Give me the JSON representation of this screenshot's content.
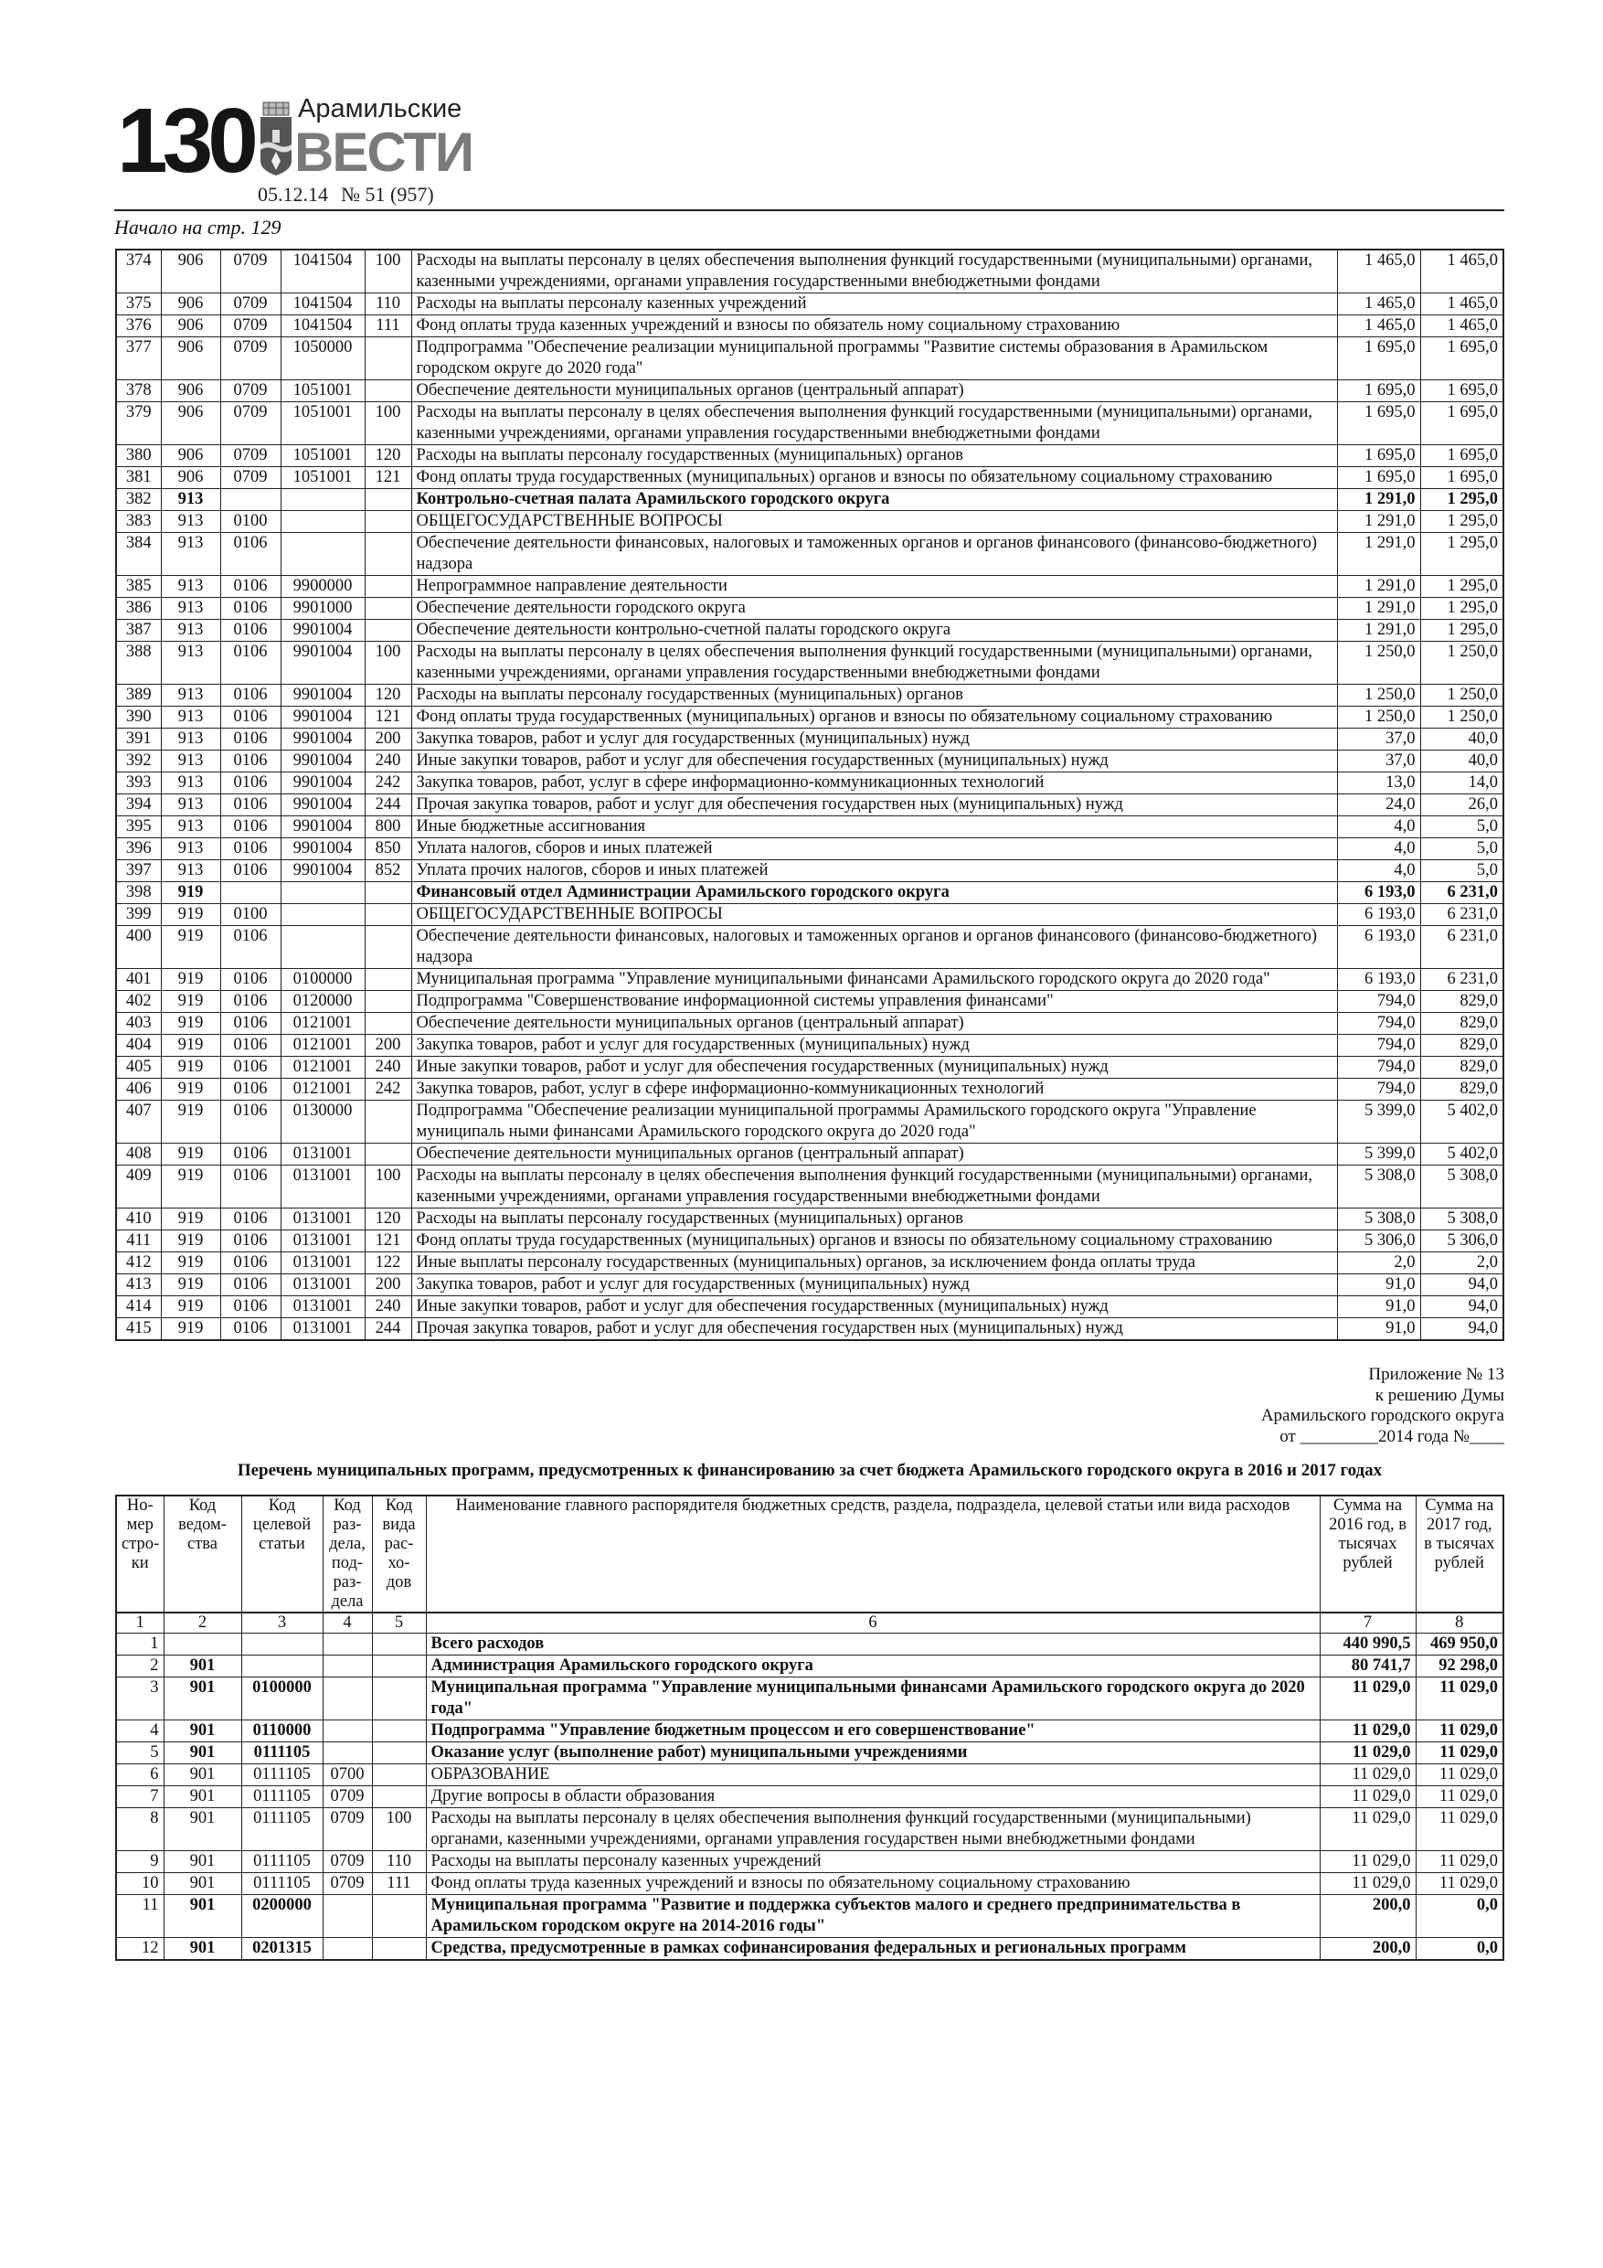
{
  "masthead": {
    "page_number": "130",
    "paper_name_line1": "Арамильские",
    "paper_name_line2": "ВЕСТИ",
    "date": "05.12.14",
    "issue": "№ 51 (957)",
    "continued_from": "Начало на стр. 129"
  },
  "top_table": {
    "rows": [
      {
        "n": "374",
        "ved": "906",
        "razd": "0709",
        "cs": "1041504",
        "vr": "100",
        "name": "Расходы на выплаты персоналу в целях обеспечения выполнения функций государственными (муниципальными) органами, казенными учреждениями, органами управления государственными внебюджетными фондами",
        "s1": "1 465,0",
        "s2": "1 465,0"
      },
      {
        "n": "375",
        "ved": "906",
        "razd": "0709",
        "cs": "1041504",
        "vr": "110",
        "name": "Расходы на выплаты персоналу казенных учреждений",
        "s1": "1 465,0",
        "s2": "1 465,0"
      },
      {
        "n": "376",
        "ved": "906",
        "razd": "0709",
        "cs": "1041504",
        "vr": "111",
        "name": "Фонд оплаты труда казенных учреждений и взносы по обязатель ному социальному страхованию",
        "s1": "1 465,0",
        "s2": "1 465,0"
      },
      {
        "n": "377",
        "ved": "906",
        "razd": "0709",
        "cs": "1050000",
        "vr": "",
        "name": "Подпрограмма \"Обеспечение реализации муниципальной программы \"Развитие системы образования в Арамильском городском округе до 2020 года\"",
        "s1": "1 695,0",
        "s2": "1 695,0"
      },
      {
        "n": "378",
        "ved": "906",
        "razd": "0709",
        "cs": "1051001",
        "vr": "",
        "name": "Обеспечение деятельности муниципальных органов (центральный аппарат)",
        "s1": "1 695,0",
        "s2": "1 695,0"
      },
      {
        "n": "379",
        "ved": "906",
        "razd": "0709",
        "cs": "1051001",
        "vr": "100",
        "name": "Расходы на выплаты персоналу в целях обеспечения выполнения функций государственными (муниципальными) органами, казенными учреждениями, органами управления государственными внебюджетными фондами",
        "s1": "1 695,0",
        "s2": "1 695,0"
      },
      {
        "n": "380",
        "ved": "906",
        "razd": "0709",
        "cs": "1051001",
        "vr": "120",
        "name": "Расходы на выплаты персоналу государственных (муниципальных) органов",
        "s1": "1 695,0",
        "s2": "1 695,0"
      },
      {
        "n": "381",
        "ved": "906",
        "razd": "0709",
        "cs": "1051001",
        "vr": "121",
        "name": "Фонд оплаты труда государственных (муниципальных) органов и  взносы по обязательному социальному страхованию",
        "s1": "1 695,0",
        "s2": "1 695,0"
      },
      {
        "n": "382",
        "ved": "913",
        "razd": "",
        "cs": "",
        "vr": "",
        "name": "Контрольно-счетная палата Арамильского городского округа",
        "s1": "1 291,0",
        "s2": "1 295,0",
        "bold": true
      },
      {
        "n": "383",
        "ved": "913",
        "razd": "0100",
        "cs": "",
        "vr": "",
        "name": "ОБЩЕГОСУДАРСТВЕННЫЕ ВОПРОСЫ",
        "s1": "1 291,0",
        "s2": "1 295,0"
      },
      {
        "n": "384",
        "ved": "913",
        "razd": "0106",
        "cs": "",
        "vr": "",
        "name": "Обеспечение деятельности финансовых, налоговых и таможенных органов и органов финансового (финансово-бюджетного) надзора",
        "s1": "1 291,0",
        "s2": "1 295,0"
      },
      {
        "n": "385",
        "ved": "913",
        "razd": "0106",
        "cs": "9900000",
        "vr": "",
        "name": "Непрограммное направление деятельности",
        "s1": "1 291,0",
        "s2": "1 295,0"
      },
      {
        "n": "386",
        "ved": "913",
        "razd": "0106",
        "cs": "9901000",
        "vr": "",
        "name": "Обеспечение деятельности городского округа",
        "s1": "1 291,0",
        "s2": "1 295,0"
      },
      {
        "n": "387",
        "ved": "913",
        "razd": "0106",
        "cs": "9901004",
        "vr": "",
        "name": "Обеспечение деятельности контрольно-счетной палаты городского округа",
        "s1": "1 291,0",
        "s2": "1 295,0"
      },
      {
        "n": "388",
        "ved": "913",
        "razd": "0106",
        "cs": "9901004",
        "vr": "100",
        "name": "Расходы на выплаты персоналу в целях обеспечения выполнения функций государственными (муниципальными) органами, казенными учреждениями, органами управления государственными внебюджетными фондами",
        "s1": "1 250,0",
        "s2": "1 250,0"
      },
      {
        "n": "389",
        "ved": "913",
        "razd": "0106",
        "cs": "9901004",
        "vr": "120",
        "name": "Расходы на выплаты персоналу государственных (муниципальных) органов",
        "s1": "1 250,0",
        "s2": "1 250,0"
      },
      {
        "n": "390",
        "ved": "913",
        "razd": "0106",
        "cs": "9901004",
        "vr": "121",
        "name": "Фонд оплаты труда государственных (муниципальных) органов и  взносы по обязательному социальному страхованию",
        "s1": "1 250,0",
        "s2": "1 250,0"
      },
      {
        "n": "391",
        "ved": "913",
        "razd": "0106",
        "cs": "9901004",
        "vr": "200",
        "name": "Закупка товаров, работ и услуг для государственных (муниципальных) нужд",
        "s1": "37,0",
        "s2": "40,0"
      },
      {
        "n": "392",
        "ved": "913",
        "razd": "0106",
        "cs": "9901004",
        "vr": "240",
        "name": "Иные закупки товаров, работ и услуг для обеспечения государственных (муниципальных) нужд",
        "s1": "37,0",
        "s2": "40,0"
      },
      {
        "n": "393",
        "ved": "913",
        "razd": "0106",
        "cs": "9901004",
        "vr": "242",
        "name": "Закупка товаров, работ, услуг в сфере информационно-коммуникационных технологий",
        "s1": "13,0",
        "s2": "14,0"
      },
      {
        "n": "394",
        "ved": "913",
        "razd": "0106",
        "cs": "9901004",
        "vr": "244",
        "name": "Прочая закупка товаров, работ и услуг для обеспечения государствен ных  (муниципальных) нужд",
        "s1": "24,0",
        "s2": "26,0"
      },
      {
        "n": "395",
        "ved": "913",
        "razd": "0106",
        "cs": "9901004",
        "vr": "800",
        "name": "Иные бюджетные ассигнования",
        "s1": "4,0",
        "s2": "5,0"
      },
      {
        "n": "396",
        "ved": "913",
        "razd": "0106",
        "cs": "9901004",
        "vr": "850",
        "name": "Уплата налогов, сборов и иных платежей",
        "s1": "4,0",
        "s2": "5,0"
      },
      {
        "n": "397",
        "ved": "913",
        "razd": "0106",
        "cs": "9901004",
        "vr": "852",
        "name": "Уплата прочих налогов, сборов и иных платежей",
        "s1": "4,0",
        "s2": "5,0"
      },
      {
        "n": "398",
        "ved": "919",
        "razd": "",
        "cs": "",
        "vr": "",
        "name": "Финансовый отдел Администрации Арамильского городского округа",
        "s1": "6 193,0",
        "s2": "6 231,0",
        "bold": true
      },
      {
        "n": "399",
        "ved": "919",
        "razd": "0100",
        "cs": "",
        "vr": "",
        "name": "ОБЩЕГОСУДАРСТВЕННЫЕ ВОПРОСЫ",
        "s1": "6 193,0",
        "s2": "6 231,0"
      },
      {
        "n": "400",
        "ved": "919",
        "razd": "0106",
        "cs": "",
        "vr": "",
        "name": "Обеспечение деятельности финансовых, налоговых и таможенных органов и органов финансового (финансово-бюджетного) надзора",
        "s1": "6 193,0",
        "s2": "6 231,0"
      },
      {
        "n": "401",
        "ved": "919",
        "razd": "0106",
        "cs": "0100000",
        "vr": "",
        "name": "Муниципальная программа \"Управление муниципальными финансами Арамильского городского округа до 2020 года\"",
        "s1": "6 193,0",
        "s2": "6 231,0"
      },
      {
        "n": "402",
        "ved": "919",
        "razd": "0106",
        "cs": "0120000",
        "vr": "",
        "name": "Подпрограмма \"Совершенствование информационной системы управления финансами\"",
        "s1": "794,0",
        "s2": "829,0"
      },
      {
        "n": "403",
        "ved": "919",
        "razd": "0106",
        "cs": "0121001",
        "vr": "",
        "name": "Обеспечение деятельности муниципальных органов (центральный аппарат)",
        "s1": "794,0",
        "s2": "829,0"
      },
      {
        "n": "404",
        "ved": "919",
        "razd": "0106",
        "cs": "0121001",
        "vr": "200",
        "name": "Закупка товаров, работ и услуг для государственных (муниципальных) нужд",
        "s1": "794,0",
        "s2": "829,0"
      },
      {
        "n": "405",
        "ved": "919",
        "razd": "0106",
        "cs": "0121001",
        "vr": "240",
        "name": "Иные закупки товаров, работ и услуг для обеспечения государственных (муниципальных) нужд",
        "s1": "794,0",
        "s2": "829,0"
      },
      {
        "n": "406",
        "ved": "919",
        "razd": "0106",
        "cs": "0121001",
        "vr": "242",
        "name": "Закупка товаров, работ, услуг в сфере информационно-коммуникационных технологий",
        "s1": "794,0",
        "s2": "829,0"
      },
      {
        "n": "407",
        "ved": "919",
        "razd": "0106",
        "cs": "0130000",
        "vr": "",
        "name": "Подпрограмма \"Обеспечение реализации муниципальной программы Арамильского городского округа \"Управление муниципаль ными финансами Арамильского городского округа до 2020 года\"",
        "s1": "5 399,0",
        "s2": "5 402,0"
      },
      {
        "n": "408",
        "ved": "919",
        "razd": "0106",
        "cs": "0131001",
        "vr": "",
        "name": "Обеспечение деятельности муниципальных органов (центральный аппарат)",
        "s1": "5 399,0",
        "s2": "5 402,0"
      },
      {
        "n": "409",
        "ved": "919",
        "razd": "0106",
        "cs": "0131001",
        "vr": "100",
        "name": "Расходы на выплаты персоналу в целях обеспечения выполнения функций государственными (муниципальными) органами, казенными учреждениями, органами управления государственными внебюджетными фондами",
        "s1": "5 308,0",
        "s2": "5 308,0"
      },
      {
        "n": "410",
        "ved": "919",
        "razd": "0106",
        "cs": "0131001",
        "vr": "120",
        "name": "Расходы на выплаты персоналу государственных (муниципальных) органов",
        "s1": "5 308,0",
        "s2": "5 308,0"
      },
      {
        "n": "411",
        "ved": "919",
        "razd": "0106",
        "cs": "0131001",
        "vr": "121",
        "name": "Фонд оплаты труда государственных (муниципальных) органов и  взносы по обязательному социальному страхованию",
        "s1": "5 306,0",
        "s2": "5 306,0"
      },
      {
        "n": "412",
        "ved": "919",
        "razd": "0106",
        "cs": "0131001",
        "vr": "122",
        "name": "Иные выплаты персоналу  государственных (муниципальных) органов, за исключением фонда оплаты труда",
        "s1": "2,0",
        "s2": "2,0"
      },
      {
        "n": "413",
        "ved": "919",
        "razd": "0106",
        "cs": "0131001",
        "vr": "200",
        "name": "Закупка товаров, работ и услуг для государственных (муниципальных) нужд",
        "s1": "91,0",
        "s2": "94,0"
      },
      {
        "n": "414",
        "ved": "919",
        "razd": "0106",
        "cs": "0131001",
        "vr": "240",
        "name": "Иные закупки товаров, работ и услуг для обеспечения государственных (муниципальных) нужд",
        "s1": "91,0",
        "s2": "94,0"
      },
      {
        "n": "415",
        "ved": "919",
        "razd": "0106",
        "cs": "0131001",
        "vr": "244",
        "name": "Прочая закупка товаров, работ и услуг для обеспечения государствен ных  (муниципальных) нужд",
        "s1": "91,0",
        "s2": "94,0"
      }
    ]
  },
  "appendix": {
    "line1": "Приложение № 13",
    "line2": "к решению Думы",
    "line3": "Арамильского городского округа",
    "line4": "от _________2014 года №____"
  },
  "title": "Перечень муниципальных программ, предусмотренных к финансированию за счет бюджета Арамильского городского округа в 2016 и 2017 годах",
  "bottom_table": {
    "headers": [
      "Но-мер стро-ки",
      "Код ведом-ства",
      "Код целевой статьи",
      "Код раз-дела, под-раз-дела",
      "Код вида рас-хо-дов",
      "Наименование главного распорядителя бюджетных средств, раздела, подраздела, целевой статьи или вида расходов",
      "Сумма на 2016 год, в тысячах рублей",
      "Сумма на 2017 год, в тысячах рублей"
    ],
    "column_numbers": [
      "1",
      "2",
      "3",
      "4",
      "5",
      "6",
      "7",
      "8"
    ],
    "rows": [
      {
        "n": "1",
        "ved": "",
        "cs": "",
        "razd": "",
        "vr": "",
        "name": "Всего расходов",
        "s1": "440 990,5",
        "s2": "469 950,0",
        "bold": true
      },
      {
        "n": "2",
        "ved": "901",
        "cs": "",
        "razd": "",
        "vr": "",
        "name": "Администрация Арамильского городского округа",
        "s1": "80 741,7",
        "s2": "92 298,0",
        "bold": true
      },
      {
        "n": "3",
        "ved": "901",
        "cs": "0100000",
        "razd": "",
        "vr": "",
        "name": "Муниципальная программа \"Управление муниципальными финансами Арамильского городского округа до 2020 года\"",
        "s1": "11 029,0",
        "s2": "11 029,0",
        "bold": true
      },
      {
        "n": "4",
        "ved": "901",
        "cs": "0110000",
        "razd": "",
        "vr": "",
        "name": "Подпрограмма \"Управление бюджетным процессом и его совершенствование\"",
        "s1": "11 029,0",
        "s2": "11 029,0",
        "bold": true
      },
      {
        "n": "5",
        "ved": "901",
        "cs": "0111105",
        "razd": "",
        "vr": "",
        "name": "Оказание услуг (выполнение работ) муниципальными учреждениями",
        "s1": "11 029,0",
        "s2": "11 029,0",
        "bold": true
      },
      {
        "n": "6",
        "ved": "901",
        "cs": "0111105",
        "razd": "0700",
        "vr": "",
        "name": "ОБРАЗОВАНИЕ",
        "s1": "11 029,0",
        "s2": "11 029,0"
      },
      {
        "n": "7",
        "ved": "901",
        "cs": "0111105",
        "razd": "0709",
        "vr": "",
        "name": "Другие вопросы в области образования",
        "s1": "11 029,0",
        "s2": "11 029,0"
      },
      {
        "n": "8",
        "ved": "901",
        "cs": "0111105",
        "razd": "0709",
        "vr": "100",
        "name": "Расходы на выплаты персоналу в целях обеспечения выполнения функций государственными (муниципальными) органами, казенными учреждениями, органами управления государствен ными внебюджетными фондами",
        "s1": "11 029,0",
        "s2": "11 029,0"
      },
      {
        "n": "9",
        "ved": "901",
        "cs": "0111105",
        "razd": "0709",
        "vr": "110",
        "name": "Расходы на выплаты персоналу казенных учреждений",
        "s1": "11 029,0",
        "s2": "11 029,0"
      },
      {
        "n": "10",
        "ved": "901",
        "cs": "0111105",
        "razd": "0709",
        "vr": "111",
        "name": "Фонд оплаты труда казенных учреждений и взносы по обязательному социальному страхованию",
        "s1": "11 029,0",
        "s2": "11 029,0"
      },
      {
        "n": "11",
        "ved": "901",
        "cs": "0200000",
        "razd": "",
        "vr": "",
        "name": "Муниципальная программа \"Развитие и поддержка субъектов малого и среднего предпринимательства в Арамильском городском округе на 2014-2016 годы\"",
        "s1": "200,0",
        "s2": "0,0",
        "bold": true
      },
      {
        "n": "12",
        "ved": "901",
        "cs": "0201315",
        "razd": "",
        "vr": "",
        "name": "Средства, предусмотренные в рамках софинансирования федеральных и региональных программ",
        "s1": "200,0",
        "s2": "0,0",
        "bold": true
      }
    ]
  }
}
